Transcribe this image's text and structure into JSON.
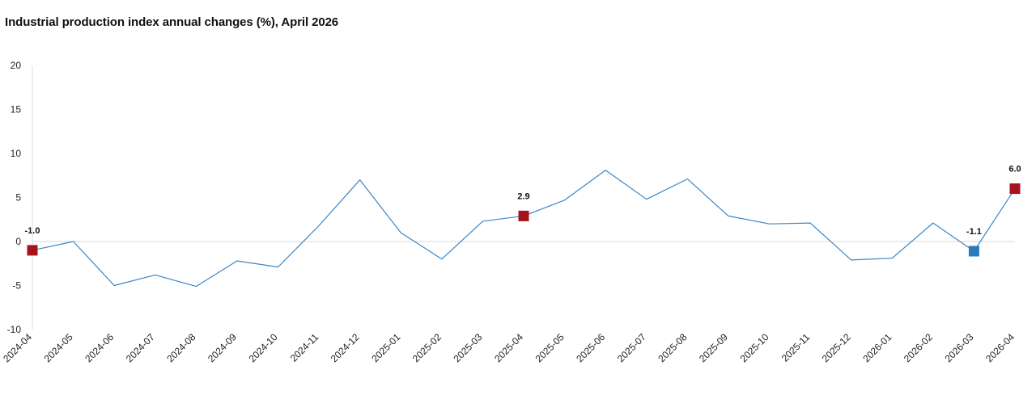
{
  "chart_data": {
    "type": "line",
    "title": "Industrial production index annual changes (%), April 2026",
    "xlabel": "",
    "ylabel": "",
    "ylim": [
      -10,
      20
    ],
    "yticks": [
      20,
      15,
      10,
      5,
      0,
      -5,
      -10
    ],
    "grid": false,
    "legend": "none",
    "categories": [
      "2024-04",
      "2024-05",
      "2024-06",
      "2024-07",
      "2024-08",
      "2024-09",
      "2024-10",
      "2024-11",
      "2024-12",
      "2025-01",
      "2025-02",
      "2025-03",
      "2025-04",
      "2025-05",
      "2025-06",
      "2025-07",
      "2025-08",
      "2025-09",
      "2025-10",
      "2025-11",
      "2025-12",
      "2026-01",
      "2026-02",
      "2026-03",
      "2026-04"
    ],
    "series": [
      {
        "values": [
          -1.0,
          0.0,
          -5.0,
          -3.8,
          -5.1,
          -2.2,
          -2.9,
          1.8,
          7.0,
          1.0,
          -2.0,
          2.3,
          2.9,
          4.7,
          8.1,
          4.8,
          7.1,
          2.9,
          2.0,
          2.1,
          -2.1,
          -1.9,
          2.1,
          -1.1,
          6.0
        ]
      }
    ],
    "highlights": [
      {
        "index": 0,
        "label": "-1.0",
        "color": "#a5141c"
      },
      {
        "index": 12,
        "label": "2.9",
        "color": "#a5141c"
      },
      {
        "index": 23,
        "label": "-1.1",
        "color": "#2b7bba"
      },
      {
        "index": 24,
        "label": "6.0",
        "color": "#a5141c"
      }
    ],
    "colors": {
      "line": "#3a86c8",
      "axis": "#dddddd",
      "zero_line": "#d9d9d9"
    }
  }
}
